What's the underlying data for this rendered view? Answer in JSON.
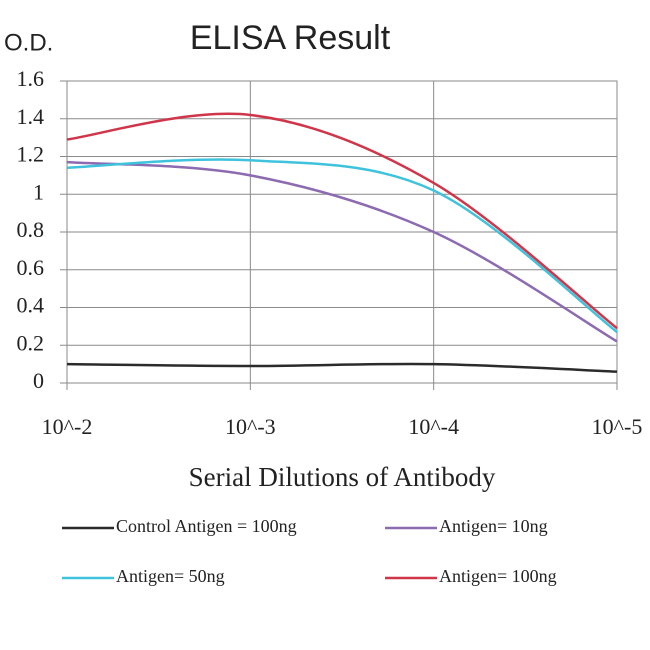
{
  "chart_data": {
    "type": "line",
    "title": "ELISA Result",
    "y_label": "O.D.",
    "x_label": "Serial Dilutions of Antibody",
    "categories": [
      "10^-2",
      "10^-3",
      "10^-4",
      "10^-5"
    ],
    "series": [
      {
        "name": "Control Antigen = 100ng",
        "color": "#2b2b2b",
        "values": [
          0.1,
          0.09,
          0.1,
          0.06
        ]
      },
      {
        "name": "Antigen= 10ng",
        "color": "#8c6bb1",
        "values": [
          1.17,
          1.1,
          0.8,
          0.22
        ]
      },
      {
        "name": "Antigen= 50ng",
        "color": "#3fc3dc",
        "values": [
          1.14,
          1.18,
          1.02,
          0.27
        ]
      },
      {
        "name": "Antigen= 100ng",
        "color": "#d0364a",
        "values": [
          1.29,
          1.42,
          1.06,
          0.29
        ]
      }
    ],
    "ylim": [
      0,
      1.6
    ],
    "yticks": [
      0,
      0.2,
      0.4,
      0.6,
      0.8,
      1,
      1.2,
      1.4,
      1.6
    ],
    "grid": true
  }
}
